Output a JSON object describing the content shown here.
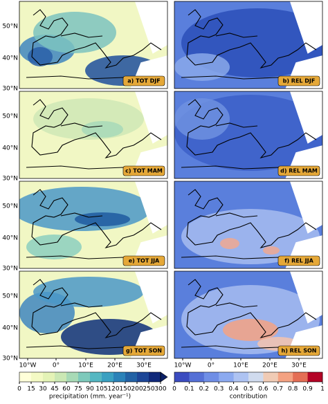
{
  "lat_labels": [
    "50°N",
    "40°N",
    "30°N"
  ],
  "lon_labels": [
    "10°W",
    "0°",
    "10°E",
    "20°E",
    "30°E"
  ],
  "panels": [
    {
      "label": "a) TOT DJF"
    },
    {
      "label": "b) REL DJF"
    },
    {
      "label": "c) TOT MAM"
    },
    {
      "label": "d) REL MAM"
    },
    {
      "label": "e) TOT JJA"
    },
    {
      "label": "f) REL JJA"
    },
    {
      "label": "g) TOT SON"
    },
    {
      "label": "h) REL SON"
    }
  ],
  "colorbars": [
    {
      "ticks": [
        0,
        15,
        30,
        45,
        60,
        75,
        90,
        105,
        120,
        150,
        200,
        250,
        300
      ],
      "label": "precipitation (mm. year⁻¹)"
    },
    {
      "ticks": [
        0,
        0.1,
        0.2,
        0.3,
        0.4,
        0.5,
        0.6,
        0.7,
        0.8,
        0.9,
        1
      ],
      "label": "contribution"
    }
  ]
}
